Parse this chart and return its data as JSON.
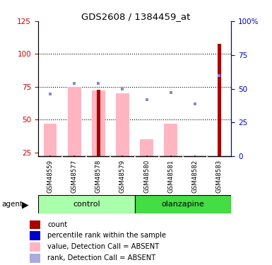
{
  "title": "GDS2608 / 1384459_at",
  "samples": [
    "GSM48559",
    "GSM48577",
    "GSM48578",
    "GSM48579",
    "GSM48580",
    "GSM48581",
    "GSM48582",
    "GSM48583"
  ],
  "bar_base": 22,
  "red_bar_values": [
    null,
    null,
    73,
    null,
    null,
    null,
    null,
    108
  ],
  "red_bar_color": "#AA0000",
  "pink_bar_values": [
    47,
    75,
    72,
    70,
    35,
    47,
    null,
    null
  ],
  "pink_bar_color": "#FFB6C1",
  "blue_sq_values": [
    46,
    54,
    54,
    50,
    42,
    47,
    39,
    60
  ],
  "blue_sq_color": "#8888CC",
  "red_sq_color": "#CC0000",
  "ylim_left": [
    22,
    125
  ],
  "ylim_right": [
    0,
    100
  ],
  "yticks_left": [
    25,
    50,
    75,
    100,
    125
  ],
  "ytick_labels_left": [
    "25",
    "50",
    "75",
    "100",
    "125"
  ],
  "yticks_right": [
    0,
    25,
    50,
    75,
    100
  ],
  "ytick_labels_right": [
    "0",
    "25",
    "50",
    "75",
    "100%"
  ],
  "left_tick_color": "#CC0000",
  "right_tick_color": "#0000BB",
  "grid_values": [
    50,
    75,
    100
  ],
  "ctrl_color": "#AAFFAA",
  "olan_color": "#44DD44",
  "legend_items": [
    {
      "color": "#AA0000",
      "label": "count"
    },
    {
      "color": "#0000CC",
      "label": "percentile rank within the sample"
    },
    {
      "color": "#FFB6C1",
      "label": "value, Detection Call = ABSENT"
    },
    {
      "color": "#AAAADD",
      "label": "rank, Detection Call = ABSENT"
    }
  ]
}
